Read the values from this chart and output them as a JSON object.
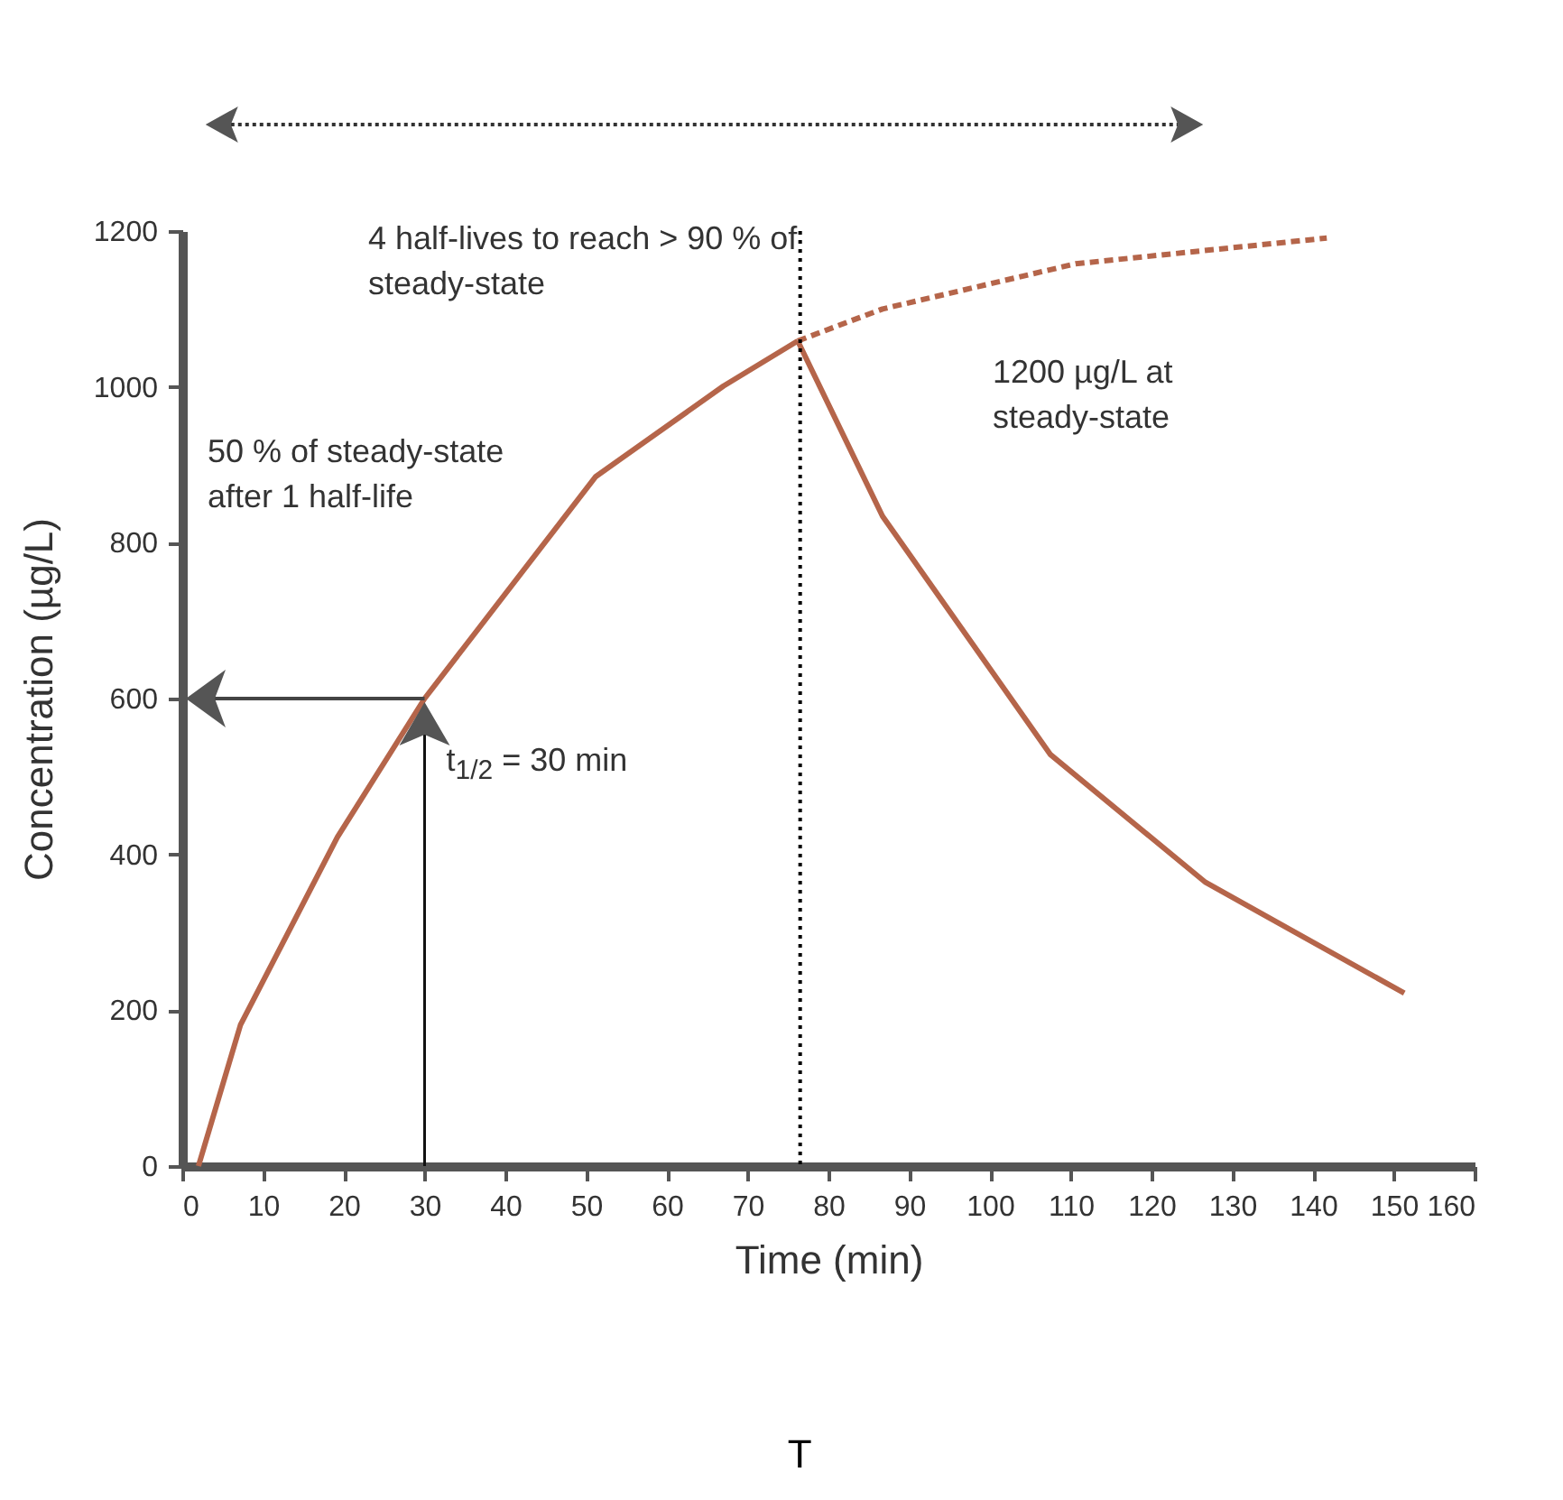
{
  "chart_data": {
    "type": "line",
    "xlabel": "Time (min)",
    "ylabel": "Concentration (µg/L)",
    "xlim": [
      0,
      160
    ],
    "xticks": [
      0,
      10,
      20,
      30,
      40,
      50,
      60,
      70,
      80,
      90,
      100,
      110,
      120,
      130,
      140,
      150,
      160
    ],
    "ylim": [
      0,
      1200
    ],
    "yticks": [
      0,
      200,
      400,
      600,
      800,
      1000,
      1200
    ],
    "series": [
      {
        "color": "#b5654a",
        "x": [
          2,
          7.2,
          19.2,
          30,
          51.2,
          67,
          76.2
        ],
        "values": [
          0,
          181,
          422,
          600,
          885,
          1001,
          1059
        ]
      },
      {
        "color": "#b5654a",
        "line_style": "dashed",
        "x": [
          76.2,
          86.7,
          110.6,
          141.7
        ],
        "values": [
          1059,
          1100,
          1158,
          1191
        ]
      },
      {
        "color": "#b5654a",
        "x": [
          76.2,
          86.7,
          107.5,
          126.7,
          151.3
        ],
        "values": [
          1059,
          834,
          528,
          364,
          222
        ]
      }
    ],
    "ref_lines": [
      {
        "axis": "x",
        "value": 76.5,
        "label": "T",
        "line_style": "dotted",
        "color": "#000000"
      }
    ],
    "annotations": [
      "4 half-lives to reach > 90 % of steady-state",
      "50 % of steady-state after 1 half-life",
      "1200 µg/L at steady-state",
      {
        "text": "t$_{1/2}$ = 30 min",
        "x": 30,
        "y": 600
      }
    ]
  }
}
